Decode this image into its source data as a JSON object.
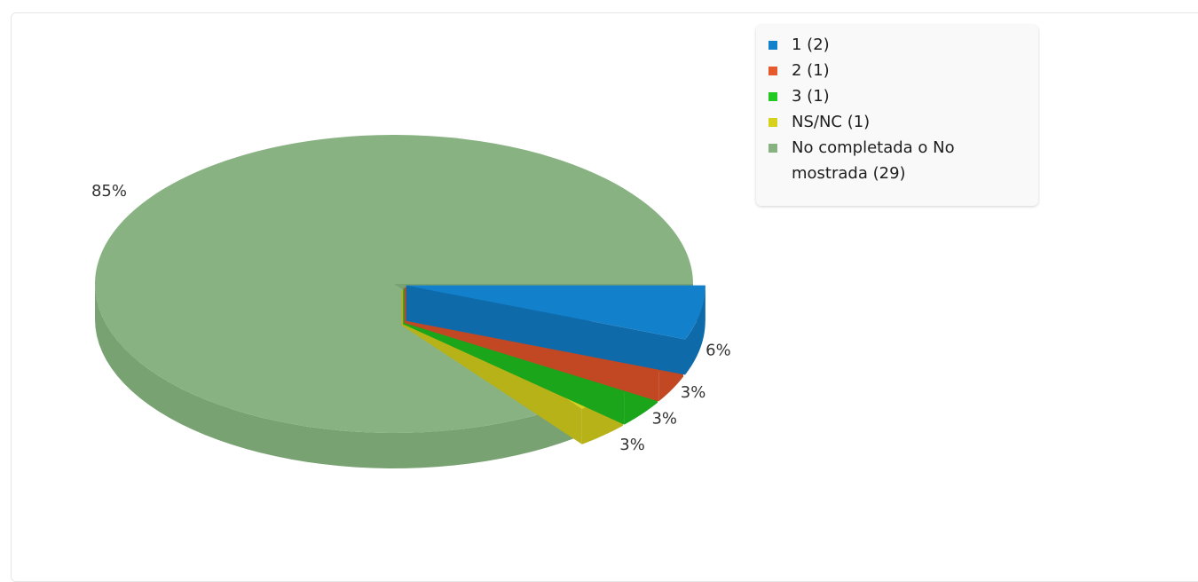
{
  "chart_data": {
    "type": "pie",
    "style": "3d",
    "title": "",
    "slices": [
      {
        "label": "1 (2)",
        "legend": "1 (2)",
        "value": 2,
        "percent_label": "6%",
        "color": "#1380cb",
        "side_color": "#0f6aaa"
      },
      {
        "label": "2 (1)",
        "legend": "2 (1)",
        "value": 1,
        "percent_label": "3%",
        "color": "#e65a2e",
        "side_color": "#c24824"
      },
      {
        "label": "3 (1)",
        "legend": "3 (1)",
        "value": 1,
        "percent_label": "3%",
        "color": "#22c922",
        "side_color": "#1aa51a"
      },
      {
        "label": "NS/NC (1)",
        "legend": "NS/NC (1)",
        "value": 1,
        "percent_label": "3%",
        "color": "#d6d11d",
        "side_color": "#b6b218"
      },
      {
        "label": "No completada o No mostrada (29)",
        "legend": "No completada o No mostrada (29)",
        "value": 29,
        "percent_label": "85%",
        "color": "#89b283",
        "side_color": "#79a273"
      }
    ],
    "legend_position": "top-right"
  }
}
